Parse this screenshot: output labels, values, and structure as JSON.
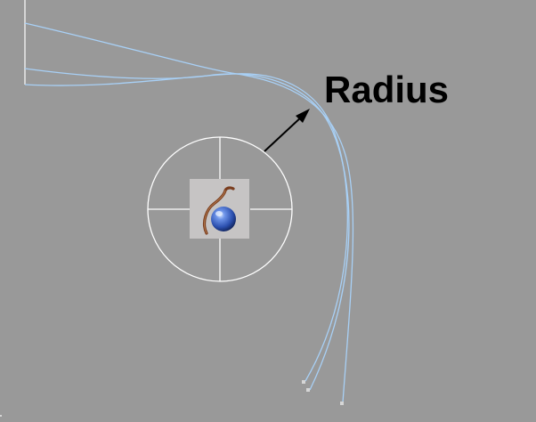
{
  "viewport": {
    "annotation": {
      "label": "Radius"
    }
  },
  "colors": {
    "background": "#999999",
    "spline": "#a8d0f6",
    "gizmo": "#ffffff",
    "arrow": "#000000",
    "vertex": "#d6d6d6",
    "icon_background": "#c6c4c4",
    "sphere": "#3a63c6",
    "hair": "#7a3d1e"
  },
  "icons": {
    "gizmo": "manipulator-crosshair-icon",
    "helper": "hair-dynamics-sphere-icon"
  }
}
